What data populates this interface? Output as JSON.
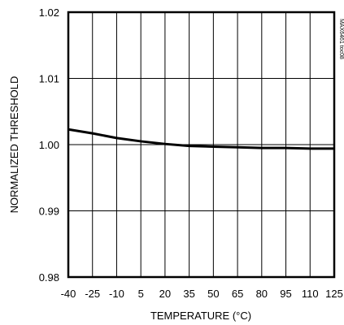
{
  "chart_data": {
    "type": "line",
    "title": "",
    "xlabel": "TEMPERATURE (°C)",
    "ylabel": "NORMALIZED THRESHOLD",
    "watermark": "MAX6461 toc08",
    "x_ticks": [
      "-40",
      "-25",
      "-10",
      "5",
      "20",
      "35",
      "50",
      "65",
      "80",
      "95",
      "110",
      "125"
    ],
    "y_ticks": [
      "0.98",
      "0.99",
      "1.00",
      "1.01",
      "1.02"
    ],
    "xlim": [
      -40,
      125
    ],
    "ylim": [
      0.98,
      1.02
    ],
    "grid": true,
    "series": [
      {
        "x": [
          -40,
          -25,
          -10,
          5,
          20,
          35,
          50,
          65,
          80,
          95,
          110,
          125
        ],
        "y": [
          1.0023,
          1.0017,
          1.001,
          1.0005,
          1.0001,
          0.9998,
          0.9997,
          0.9996,
          0.9995,
          0.9995,
          0.9994,
          0.9994
        ]
      }
    ],
    "colors": {
      "line": "#000000",
      "grid": "#000000",
      "background": "#ffffff"
    }
  }
}
